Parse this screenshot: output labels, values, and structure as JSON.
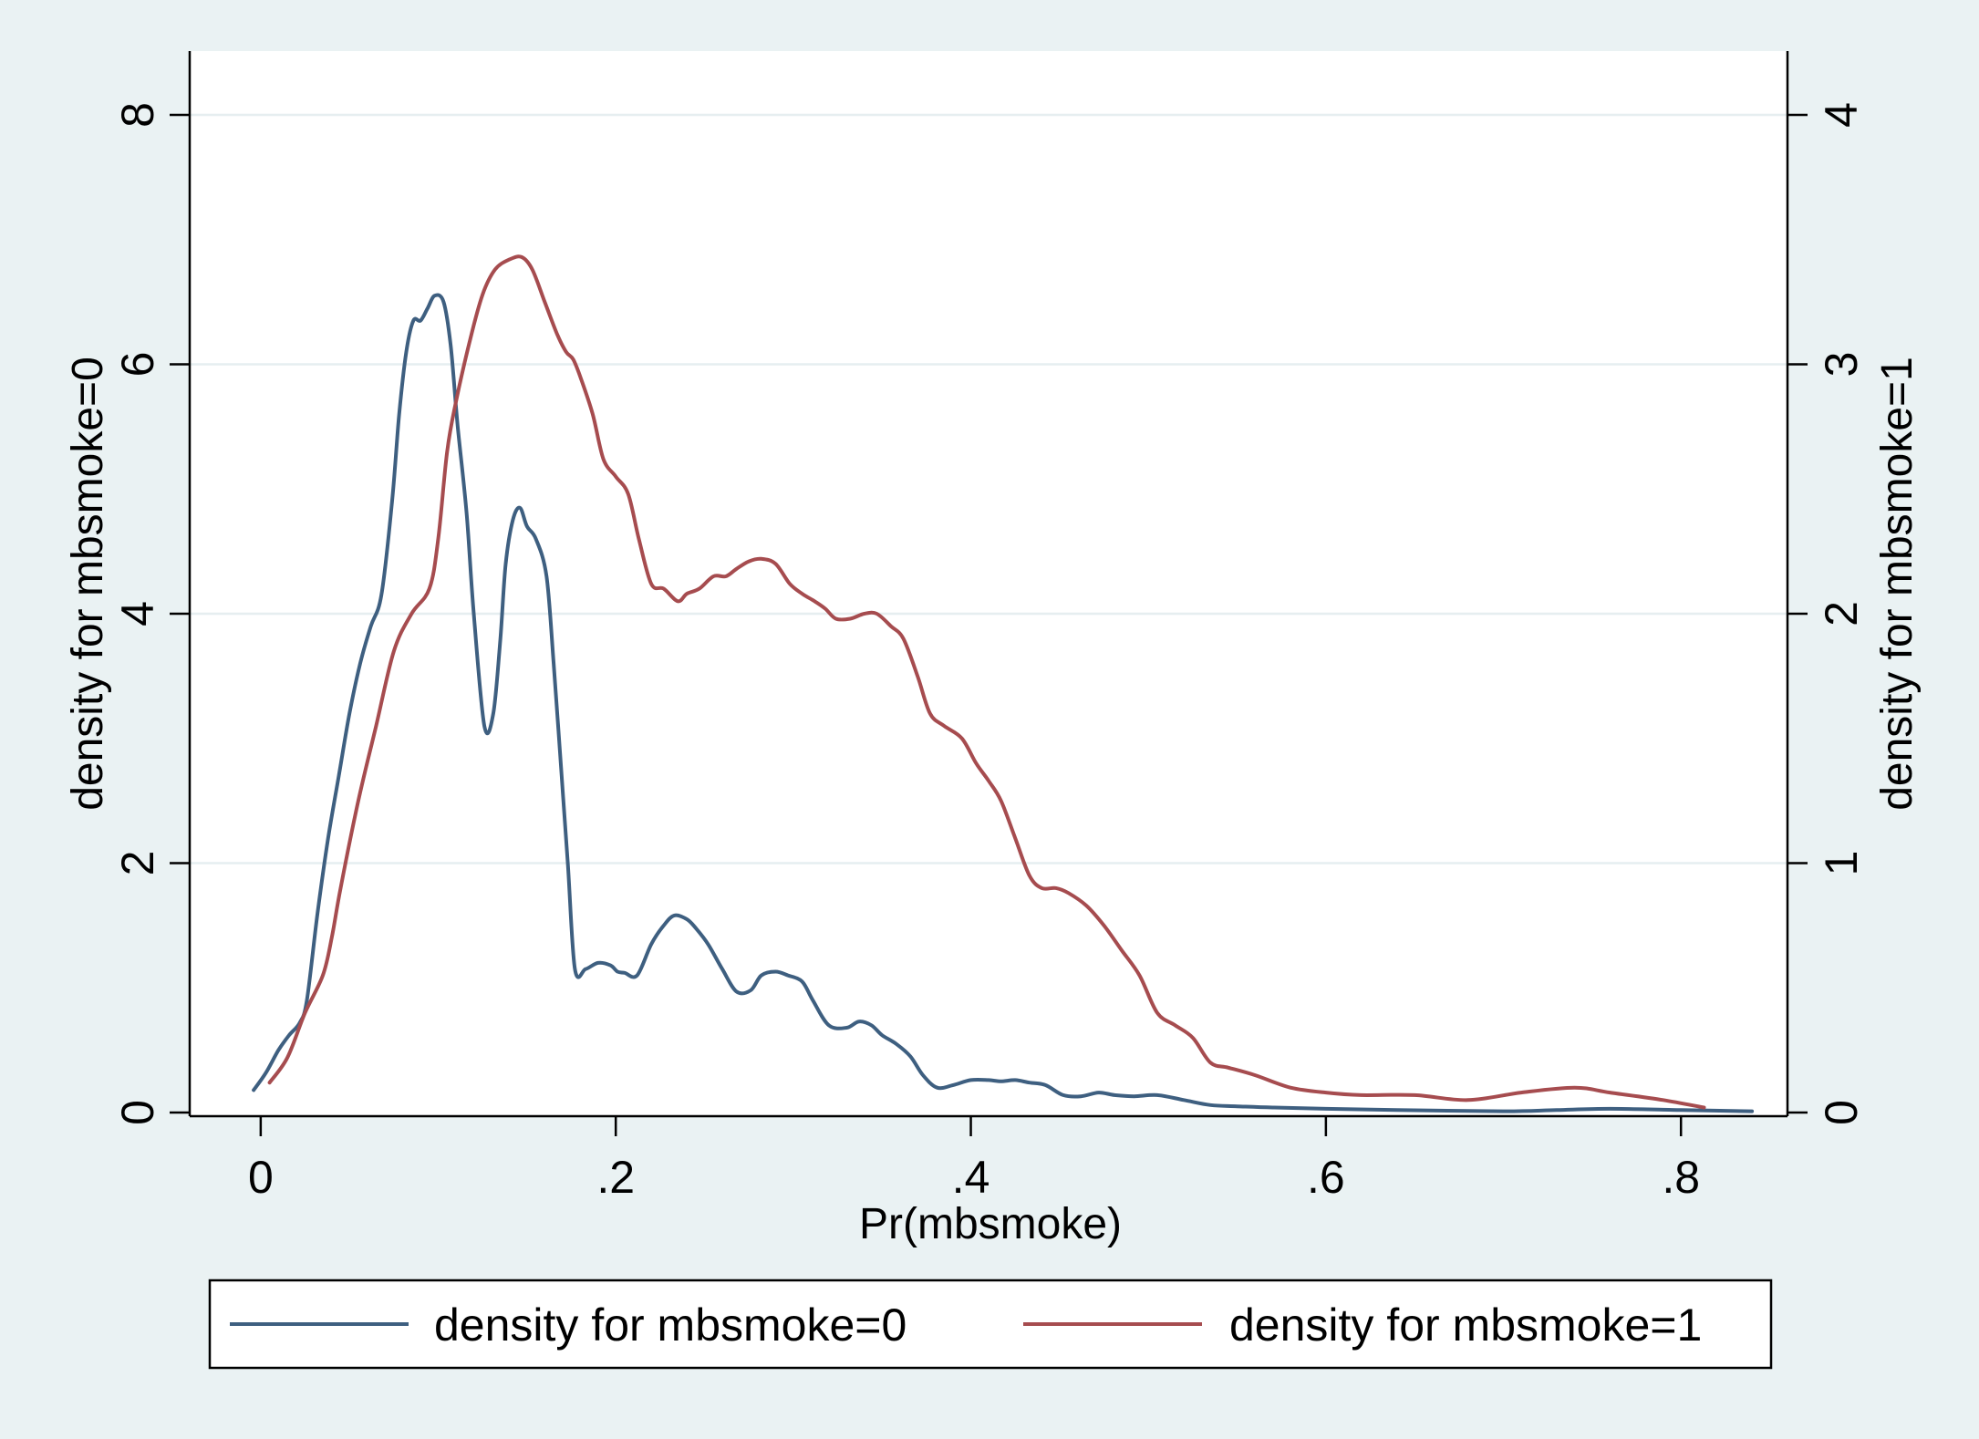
{
  "chart_data": {
    "type": "line",
    "xlabel": "Pr(mbsmoke)",
    "ylabel_left": "density for mbsmoke=0",
    "ylabel_right": "density for mbsmoke=1",
    "xlim": [
      -0.04,
      0.86
    ],
    "ylim_left": [
      0,
      8
    ],
    "ylim_right": [
      0,
      4
    ],
    "x_ticks": [
      {
        "value": 0,
        "label": "0"
      },
      {
        "value": 0.2,
        "label": ".2"
      },
      {
        "value": 0.4,
        "label": ".4"
      },
      {
        "value": 0.6,
        "label": ".6"
      },
      {
        "value": 0.8,
        "label": ".8"
      }
    ],
    "y_ticks_left": [
      {
        "value": 0,
        "label": "0"
      },
      {
        "value": 2,
        "label": "2"
      },
      {
        "value": 4,
        "label": "4"
      },
      {
        "value": 6,
        "label": "6"
      },
      {
        "value": 8,
        "label": "8"
      }
    ],
    "y_ticks_right": [
      {
        "value": 0,
        "label": "0"
      },
      {
        "value": 1,
        "label": "1"
      },
      {
        "value": 2,
        "label": "2"
      },
      {
        "value": 3,
        "label": "3"
      },
      {
        "value": 4,
        "label": "4"
      }
    ],
    "grid": true,
    "legend": "bottom",
    "series": [
      {
        "name": "density for mbsmoke=0",
        "axis": "left",
        "color": "#3e5f80",
        "x": [
          -0.004,
          0.003,
          0.01,
          0.016,
          0.022,
          0.026,
          0.032,
          0.038,
          0.044,
          0.05,
          0.056,
          0.062,
          0.068,
          0.074,
          0.078,
          0.082,
          0.086,
          0.09,
          0.094,
          0.098,
          0.103,
          0.107,
          0.111,
          0.116,
          0.12,
          0.126,
          0.131,
          0.135,
          0.138,
          0.142,
          0.146,
          0.15,
          0.155,
          0.161,
          0.165,
          0.169,
          0.173,
          0.177,
          0.183,
          0.19,
          0.197,
          0.201,
          0.205,
          0.212,
          0.22,
          0.227,
          0.233,
          0.24,
          0.245,
          0.252,
          0.26,
          0.268,
          0.276,
          0.282,
          0.29,
          0.297,
          0.305,
          0.311,
          0.32,
          0.33,
          0.337,
          0.344,
          0.35,
          0.358,
          0.366,
          0.373,
          0.381,
          0.39,
          0.4,
          0.41,
          0.417,
          0.425,
          0.433,
          0.442,
          0.452,
          0.462,
          0.472,
          0.481,
          0.492,
          0.505,
          0.52,
          0.535,
          0.55,
          0.57,
          0.6,
          0.64,
          0.7,
          0.73,
          0.76,
          0.8,
          0.84
        ],
        "y": [
          0.18,
          0.32,
          0.5,
          0.62,
          0.72,
          0.9,
          1.6,
          2.2,
          2.7,
          3.2,
          3.6,
          3.9,
          4.15,
          4.9,
          5.6,
          6.1,
          6.35,
          6.35,
          6.45,
          6.55,
          6.5,
          6.15,
          5.5,
          4.8,
          4.0,
          3.1,
          3.2,
          3.8,
          4.4,
          4.75,
          4.85,
          4.7,
          4.6,
          4.3,
          3.6,
          2.8,
          2.0,
          1.15,
          1.15,
          1.2,
          1.18,
          1.13,
          1.12,
          1.1,
          1.35,
          1.5,
          1.58,
          1.55,
          1.48,
          1.35,
          1.15,
          0.97,
          0.98,
          1.1,
          1.13,
          1.1,
          1.05,
          0.9,
          0.7,
          0.68,
          0.73,
          0.7,
          0.62,
          0.55,
          0.45,
          0.3,
          0.2,
          0.22,
          0.26,
          0.26,
          0.25,
          0.26,
          0.24,
          0.22,
          0.14,
          0.13,
          0.16,
          0.14,
          0.13,
          0.14,
          0.1,
          0.06,
          0.05,
          0.04,
          0.03,
          0.02,
          0.01,
          0.02,
          0.03,
          0.02,
          0.01
        ]
      },
      {
        "name": "density for mbsmoke=1",
        "axis": "right",
        "color": "#a64c4f",
        "x": [
          0.005,
          0.015,
          0.025,
          0.035,
          0.04,
          0.045,
          0.055,
          0.065,
          0.075,
          0.085,
          0.095,
          0.1,
          0.105,
          0.11,
          0.118,
          0.125,
          0.132,
          0.14,
          0.147,
          0.153,
          0.16,
          0.167,
          0.172,
          0.176,
          0.18,
          0.187,
          0.193,
          0.2,
          0.207,
          0.213,
          0.22,
          0.227,
          0.235,
          0.24,
          0.247,
          0.255,
          0.262,
          0.268,
          0.275,
          0.282,
          0.29,
          0.298,
          0.305,
          0.312,
          0.318,
          0.324,
          0.332,
          0.34,
          0.347,
          0.355,
          0.362,
          0.37,
          0.377,
          0.385,
          0.395,
          0.403,
          0.41,
          0.417,
          0.425,
          0.433,
          0.44,
          0.448,
          0.455,
          0.465,
          0.475,
          0.485,
          0.495,
          0.505,
          0.515,
          0.525,
          0.535,
          0.545,
          0.56,
          0.58,
          0.6,
          0.62,
          0.65,
          0.68,
          0.71,
          0.74,
          0.76,
          0.79,
          0.813
        ],
        "y": [
          0.12,
          0.22,
          0.4,
          0.55,
          0.7,
          0.9,
          1.25,
          1.55,
          1.85,
          2.0,
          2.1,
          2.3,
          2.65,
          2.85,
          3.1,
          3.28,
          3.38,
          3.42,
          3.43,
          3.38,
          3.25,
          3.12,
          3.05,
          3.02,
          2.95,
          2.8,
          2.62,
          2.55,
          2.48,
          2.3,
          2.12,
          2.1,
          2.05,
          2.08,
          2.1,
          2.15,
          2.15,
          2.18,
          2.21,
          2.22,
          2.2,
          2.12,
          2.08,
          2.05,
          2.02,
          1.98,
          1.98,
          2.0,
          2.0,
          1.95,
          1.9,
          1.75,
          1.6,
          1.55,
          1.5,
          1.4,
          1.33,
          1.25,
          1.1,
          0.95,
          0.9,
          0.9,
          0.88,
          0.83,
          0.75,
          0.65,
          0.55,
          0.4,
          0.35,
          0.3,
          0.2,
          0.18,
          0.15,
          0.1,
          0.08,
          0.07,
          0.07,
          0.05,
          0.08,
          0.1,
          0.08,
          0.05,
          0.02
        ]
      }
    ]
  }
}
